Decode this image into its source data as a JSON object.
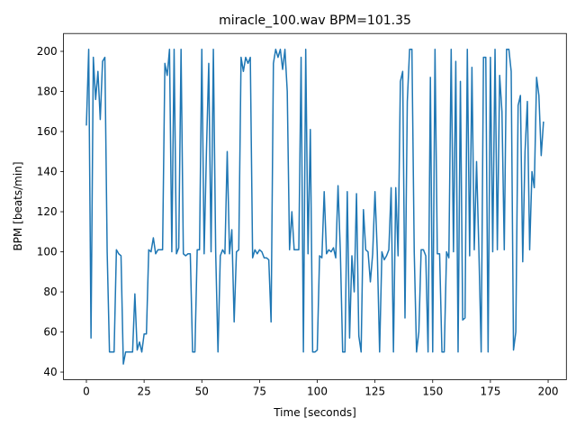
{
  "chart_data": {
    "type": "line",
    "title": "miracle_100.wav BPM=101.35",
    "xlabel": "Time [seconds]",
    "ylabel": "BPM [beats/min]",
    "x": [
      0,
      1,
      2,
      3,
      4,
      5,
      6,
      7,
      8,
      9,
      10,
      11,
      12,
      13,
      14,
      15,
      16,
      17,
      18,
      19,
      20,
      21,
      22,
      23,
      24,
      25,
      26,
      27,
      28,
      29,
      30,
      31,
      32,
      33,
      34,
      35,
      36,
      37,
      38,
      39,
      40,
      41,
      42,
      43,
      44,
      45,
      46,
      47,
      48,
      49,
      50,
      51,
      52,
      53,
      54,
      55,
      56,
      57,
      58,
      59,
      60,
      61,
      62,
      63,
      64,
      65,
      66,
      67,
      68,
      69,
      70,
      71,
      72,
      73,
      74,
      75,
      76,
      77,
      78,
      79,
      80,
      81,
      82,
      83,
      84,
      85,
      86,
      87,
      88,
      89,
      90,
      91,
      92,
      93,
      94,
      95,
      96,
      97,
      98,
      99,
      100,
      101,
      102,
      103,
      104,
      105,
      106,
      107,
      108,
      109,
      110,
      111,
      112,
      113,
      114,
      115,
      116,
      117,
      118,
      119,
      120,
      121,
      122,
      123,
      124,
      125,
      126,
      127,
      128,
      129,
      130,
      131,
      132,
      133,
      134,
      135,
      136,
      137,
      138,
      139,
      140,
      141,
      142,
      143,
      144,
      145,
      146,
      147,
      148,
      149,
      150,
      151,
      152,
      153,
      154,
      155,
      156,
      157,
      158,
      159,
      160,
      161,
      162,
      163,
      164,
      165,
      166,
      167,
      168,
      169,
      170,
      171,
      172,
      173,
      174,
      175,
      176,
      177,
      178,
      179,
      180,
      181,
      182,
      183,
      184,
      185,
      186,
      187,
      188,
      189,
      190,
      191,
      192,
      193,
      194,
      195,
      196,
      197,
      198
    ],
    "series": [
      {
        "name": "BPM",
        "color": "#1f77b4",
        "values": [
          163,
          201,
          57,
          197,
          176,
          190,
          166,
          195,
          197,
          100,
          50,
          50,
          50,
          101,
          99,
          98,
          44,
          50,
          50,
          50,
          50,
          79,
          51,
          55,
          50,
          59,
          59,
          101,
          100,
          107,
          99,
          101,
          101,
          101,
          194,
          188,
          201,
          100,
          201,
          99,
          102,
          201,
          99,
          98,
          99,
          99,
          50,
          50,
          101,
          101,
          201,
          99,
          150,
          194,
          100,
          201,
          100,
          50,
          98,
          101,
          99,
          150,
          99,
          111,
          65,
          100,
          101,
          197,
          190,
          197,
          194,
          197,
          97,
          101,
          99,
          101,
          100,
          97,
          97,
          96,
          65,
          194,
          201,
          197,
          201,
          191,
          201,
          180,
          101,
          120,
          101,
          101,
          101,
          197,
          50,
          201,
          99,
          161,
          50,
          50,
          51,
          98,
          97,
          130,
          99,
          101,
          100,
          102,
          97,
          133,
          100,
          50,
          50,
          130,
          57,
          98,
          80,
          129,
          58,
          50,
          121,
          101,
          100,
          85,
          99,
          130,
          100,
          50,
          100,
          96,
          98,
          101,
          132,
          50,
          132,
          98,
          185,
          190,
          67,
          175,
          201,
          201,
          100,
          50,
          60,
          101,
          101,
          98,
          50,
          187,
          50,
          201,
          99,
          99,
          50,
          50,
          100,
          97,
          201,
          100,
          195,
          50,
          185,
          66,
          67,
          201,
          98,
          192,
          101,
          145,
          101,
          50,
          197,
          197,
          50,
          197,
          100,
          201,
          101,
          188,
          170,
          101,
          201,
          201,
          190,
          51,
          60,
          173,
          178,
          95,
          150,
          175,
          101,
          140,
          132,
          187,
          178,
          148,
          165
        ]
      }
    ],
    "xlim": [
      -9.9,
      207.9
    ],
    "xticks": [
      0,
      25,
      50,
      75,
      100,
      125,
      150,
      175,
      200
    ],
    "ylim": [
      36.2,
      208.9
    ],
    "yticks": [
      40,
      60,
      80,
      100,
      120,
      140,
      160,
      180,
      200
    ]
  }
}
